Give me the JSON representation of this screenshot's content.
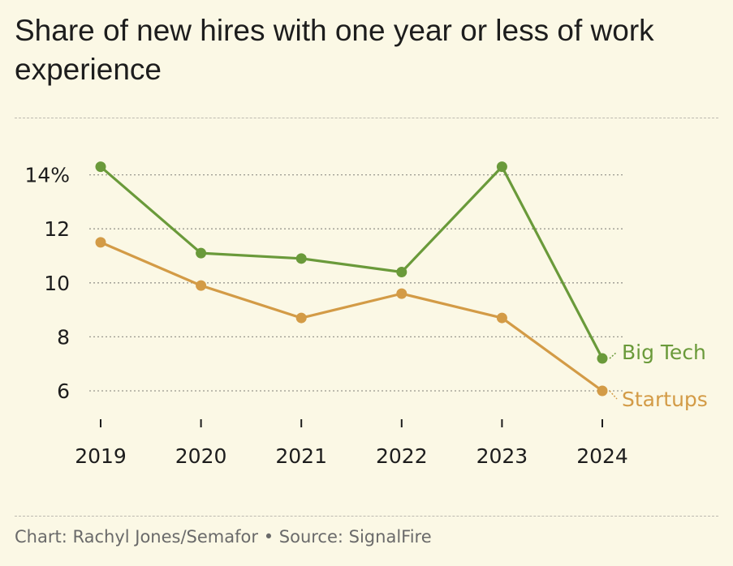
{
  "title": "Share of new hires with one year or less of work experience",
  "footer": {
    "credit": "Chart: Rachyl Jones/Semafor",
    "separator": "•",
    "source": "Source: SignalFire"
  },
  "chart_data": {
    "type": "line",
    "title": "Share of new hires with one year or less of work experience",
    "xlabel": "",
    "ylabel": "",
    "x": [
      "2019",
      "2020",
      "2021",
      "2022",
      "2023",
      "2024"
    ],
    "ylim": [
      4.8,
      15
    ],
    "yticks": [
      6,
      8,
      10,
      12,
      14
    ],
    "ytick_labels": [
      "6",
      "8",
      "10",
      "12",
      "14%"
    ],
    "grid": "horizontal dotted",
    "legend": "direct labels at line ends",
    "series": [
      {
        "name": "Big Tech",
        "color": "#6a9a3a",
        "values": [
          14.3,
          11.1,
          10.9,
          10.4,
          14.3,
          7.2
        ]
      },
      {
        "name": "Startups",
        "color": "#d39b46",
        "values": [
          11.5,
          9.9,
          8.7,
          9.6,
          8.7,
          6.0
        ]
      }
    ]
  }
}
